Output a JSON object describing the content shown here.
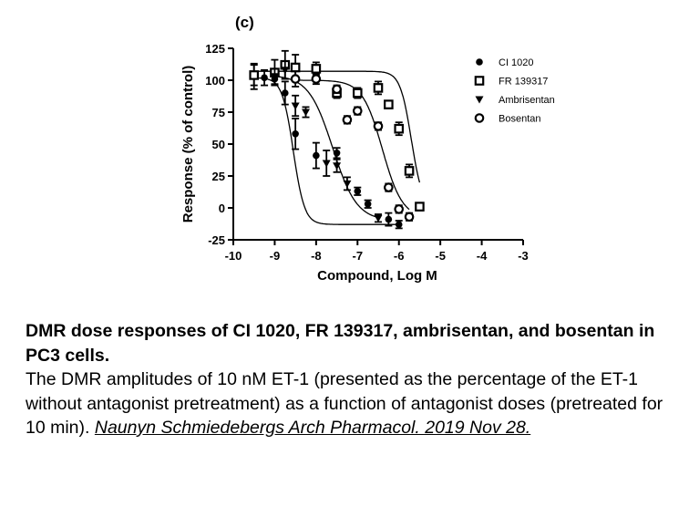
{
  "chart_data": {
    "type": "scatter",
    "panel_label": "(c)",
    "xlabel": "Compound, Log M",
    "ylabel": "Response (% of control)",
    "xlim": [
      -10,
      -3
    ],
    "ylim": [
      -25,
      125
    ],
    "x_ticks": [
      "-10",
      "-9",
      "-8",
      "-7",
      "-6",
      "-5",
      "-4",
      "-3"
    ],
    "y_ticks": [
      "-25",
      "0",
      "25",
      "50",
      "75",
      "100",
      "125"
    ],
    "legend_position": "top-right",
    "series": [
      {
        "name": "CI 1020",
        "marker": "filled-circle",
        "points": [
          {
            "x": -9.5,
            "y": 103,
            "err": 10
          },
          {
            "x": -9.25,
            "y": 102,
            "err": 6
          },
          {
            "x": -9.0,
            "y": 101,
            "err": 5
          },
          {
            "x": -8.75,
            "y": 90,
            "err": 9
          },
          {
            "x": -8.5,
            "y": 58,
            "err": 12
          },
          {
            "x": -8.0,
            "y": 41,
            "err": 10
          },
          {
            "x": -7.5,
            "y": 43,
            "err": 4
          },
          {
            "x": -7.0,
            "y": 13,
            "err": 3
          },
          {
            "x": -6.75,
            "y": 3,
            "err": 3
          },
          {
            "x": -6.25,
            "y": -9,
            "err": 5
          },
          {
            "x": -6.0,
            "y": -13,
            "err": 3
          }
        ]
      },
      {
        "name": "FR 139317",
        "marker": "open-square",
        "points": [
          {
            "x": -9.5,
            "y": 104,
            "err": 8
          },
          {
            "x": -9.0,
            "y": 106,
            "err": 10
          },
          {
            "x": -8.75,
            "y": 112,
            "err": 11
          },
          {
            "x": -8.5,
            "y": 110,
            "err": 10
          },
          {
            "x": -8.0,
            "y": 109,
            "err": 5
          },
          {
            "x": -7.5,
            "y": 90,
            "err": 4
          },
          {
            "x": -7.0,
            "y": 90,
            "err": 4
          },
          {
            "x": -6.5,
            "y": 94,
            "err": 5
          },
          {
            "x": -6.25,
            "y": 81,
            "err": 3
          },
          {
            "x": -6.0,
            "y": 62,
            "err": 5
          },
          {
            "x": -5.75,
            "y": 29,
            "err": 5
          },
          {
            "x": -5.5,
            "y": 1,
            "err": 3
          }
        ]
      },
      {
        "name": "Ambrisentan",
        "marker": "filled-triangle-down",
        "points": [
          {
            "x": -9.0,
            "y": 103,
            "err": 6
          },
          {
            "x": -8.75,
            "y": 108,
            "err": 7
          },
          {
            "x": -8.5,
            "y": 80,
            "err": 8
          },
          {
            "x": -8.25,
            "y": 75,
            "err": 4
          },
          {
            "x": -7.75,
            "y": 35,
            "err": 10
          },
          {
            "x": -7.5,
            "y": 33,
            "err": 5
          },
          {
            "x": -7.25,
            "y": 19,
            "err": 5
          },
          {
            "x": -6.5,
            "y": -8,
            "err": 3
          }
        ]
      },
      {
        "name": "Bosentan",
        "marker": "open-circle",
        "points": [
          {
            "x": -8.5,
            "y": 101,
            "err": 6
          },
          {
            "x": -8.0,
            "y": 101,
            "err": 4
          },
          {
            "x": -7.5,
            "y": 93,
            "err": 3
          },
          {
            "x": -7.25,
            "y": 69,
            "err": 3
          },
          {
            "x": -7.0,
            "y": 76,
            "err": 3
          },
          {
            "x": -6.5,
            "y": 64,
            "err": 3
          },
          {
            "x": -6.25,
            "y": 16,
            "err": 3
          },
          {
            "x": -6.0,
            "y": -1,
            "err": 3
          },
          {
            "x": -5.75,
            "y": -7,
            "err": 3
          }
        ]
      }
    ],
    "fits": [
      {
        "series": "CI 1020",
        "top": 102,
        "bottom": -13,
        "logEC50": -8.55,
        "hill": 3.2
      },
      {
        "series": "FR 139317",
        "top": 107,
        "bottom": 0,
        "logEC50": -5.7,
        "hill": 3.2
      },
      {
        "series": "Ambrisentan",
        "top": 104,
        "bottom": -10,
        "logEC50": -7.6,
        "hill": 1.5
      },
      {
        "series": "Bosentan",
        "top": 100,
        "bottom": -8,
        "logEC50": -6.4,
        "hill": 1.8
      }
    ]
  },
  "caption": {
    "title": "DMR dose responses of CI 1020, FR 139317, ambrisentan, and bosentan in PC3 cells.",
    "body": "The DMR amplitudes of 10 nM ET-1 (presented as the percentage of the ET-1 without antagonist pretreatment) as a function of antagonist doses (pretreated for 10 min). ",
    "citation": "Naunyn Schmiedebergs Arch Pharmacol. 2019 Nov 28."
  }
}
